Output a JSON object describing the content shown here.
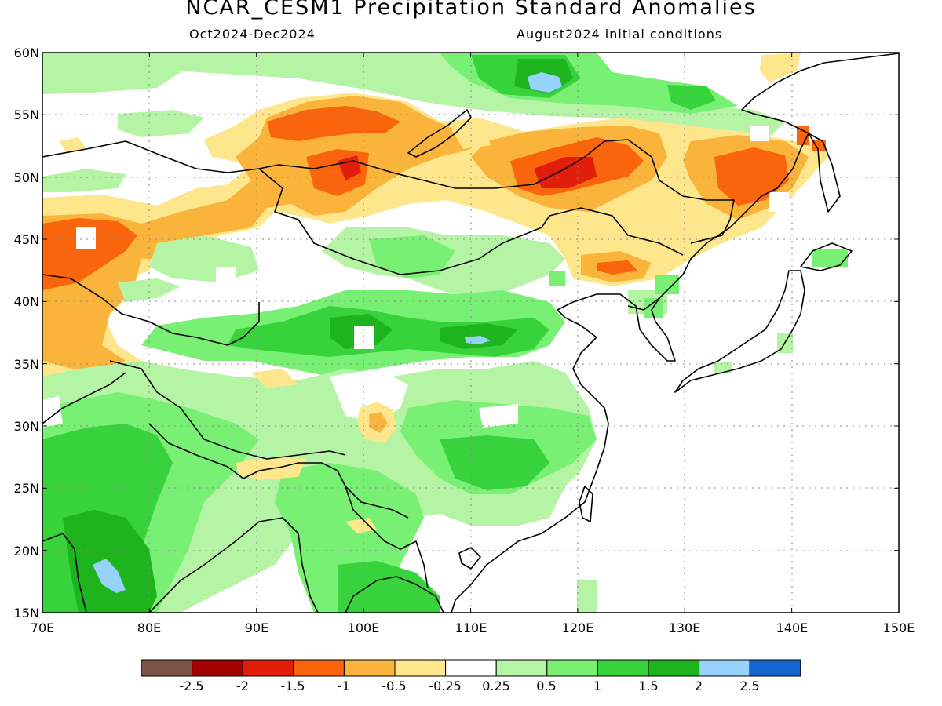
{
  "title": "NCAR_CESM1 Precipitation Standard Anomalies",
  "subtitle_left": "Oct2024-Dec2024",
  "subtitle_right": "August2024 initial conditions",
  "map": {
    "projection": "cylindrical equidistant",
    "lon_range": [
      70,
      150
    ],
    "lat_range": [
      15,
      60
    ],
    "lon_ticks": [
      "70E",
      "80E",
      "90E",
      "100E",
      "110E",
      "120E",
      "130E",
      "140E",
      "150E"
    ],
    "lat_ticks": [
      "15N",
      "20N",
      "25N",
      "30N",
      "35N",
      "40N",
      "45N",
      "50N",
      "55N",
      "60N"
    ],
    "gridlines": "dotted",
    "field": "precipitation standard anomaly",
    "pattern_notes": [
      "dry anomalies (orange/red) across Kazakhstan, southern Siberia, Mongolia and the Russian Far East",
      "wet anomalies (green) over India, the Tibetan Plateau, western and central China, and along 60N",
      "strongest dry core near 120E 50N; strongest wet cores near 117E 57N, 112E 37N and 76E 18N"
    ]
  },
  "colorbar": {
    "colors": [
      "#7b5446",
      "#a50000",
      "#e11e0c",
      "#fa640c",
      "#fab43c",
      "#fee68c",
      "#ffffff",
      "#b4f4a4",
      "#78f073",
      "#37d23c",
      "#1eb41e",
      "#96d2fa",
      "#1464d2"
    ],
    "labels": [
      "-2.5",
      "-2",
      "-1.5",
      "-1",
      "-0.5",
      "-0.25",
      "0.25",
      "0.5",
      "1",
      "1.5",
      "2",
      "2.5"
    ]
  }
}
